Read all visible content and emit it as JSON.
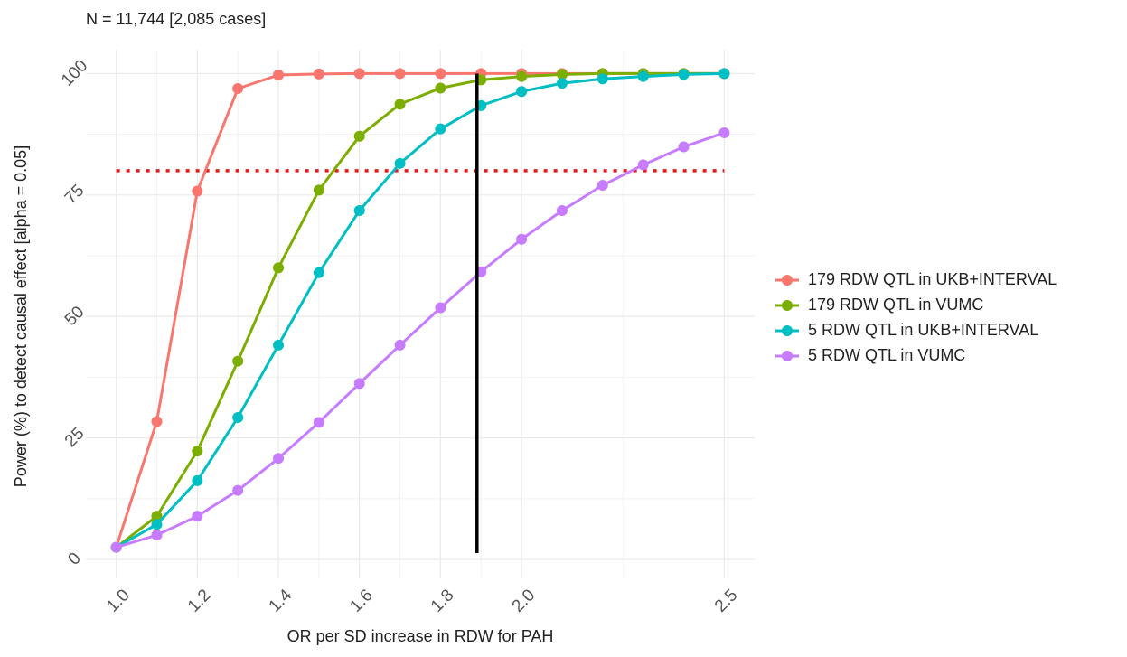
{
  "chart_data": {
    "type": "line",
    "title": "N = 11,744 [2,085 cases]",
    "x_label": "OR per SD increase in RDW for PAH",
    "y_label": "Power (%) to detect causal effect [alpha = 0.05]",
    "x": [
      1.0,
      1.1,
      1.2,
      1.3,
      1.4,
      1.5,
      1.6,
      1.7,
      1.8,
      1.9,
      2.0,
      2.1,
      2.2,
      2.3,
      2.4,
      2.5
    ],
    "series": [
      {
        "name": "179 RDW QTL in UKB+INTERVAL",
        "color": "#F8766D",
        "values": [
          2.5,
          28.4,
          75.8,
          96.9,
          99.7,
          99.9,
          100,
          100,
          100,
          100,
          100,
          100,
          100,
          100,
          100,
          100
        ]
      },
      {
        "name": "179 RDW QTL in VUMC",
        "color": "#7CAE00",
        "values": [
          2.5,
          8.9,
          22.3,
          40.8,
          60,
          76,
          87.1,
          93.7,
          97,
          98.7,
          99.4,
          99.8,
          100,
          100,
          100,
          100
        ]
      },
      {
        "name": "5 RDW QTL in UKB+INTERVAL",
        "color": "#00BFC4",
        "values": [
          2.5,
          7.2,
          16.2,
          29.2,
          44.1,
          59,
          71.8,
          81.5,
          88.6,
          93.4,
          96.3,
          98,
          98.9,
          99.4,
          99.8,
          100
        ]
      },
      {
        "name": "5 RDW QTL in VUMC",
        "color": "#C77CFF",
        "values": [
          2.5,
          5,
          8.9,
          14.2,
          20.8,
          28.2,
          36.2,
          44.1,
          51.8,
          59.2,
          65.9,
          71.8,
          77,
          81.2,
          84.9,
          87.8
        ]
      }
    ],
    "xlim": [
      0.925,
      2.575
    ],
    "ylim": [
      -3.9,
      104.9
    ],
    "xticks": [
      {
        "value": 1,
        "label": "1.0"
      },
      1.2,
      1.4,
      1.6,
      1.8,
      {
        "value": 2,
        "label": "2.0"
      },
      2.5
    ],
    "yticks": [
      0,
      25,
      50,
      75,
      100
    ],
    "grid": true,
    "hline": {
      "value": 80,
      "color": "#E41A1C"
    },
    "vline": {
      "value": 1.89,
      "ymin": 1.3,
      "ymax": 100,
      "color": "#000000"
    },
    "legend": "right"
  }
}
